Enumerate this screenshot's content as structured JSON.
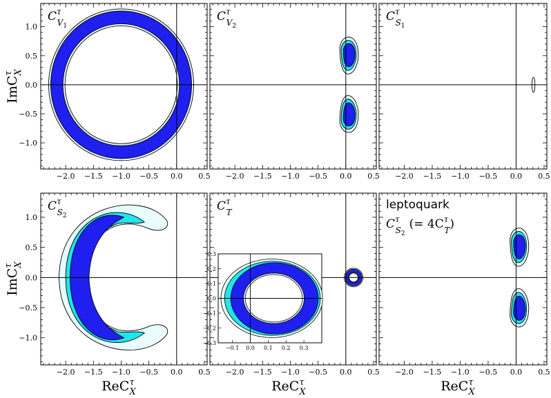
{
  "chart_data": {
    "type": "contour",
    "xlabel": "ReC",
    "xlabel_sup": "τ",
    "xlabel_sub": "X",
    "ylabel": "ImC",
    "ylabel_sup": "τ",
    "ylabel_sub": "X",
    "xlim": [
      -2.45,
      0.55
    ],
    "ylim": [
      -1.45,
      1.4
    ],
    "xticks": [
      "-2.0",
      "-1.5",
      "-1.0",
      "-0.5",
      "0.0",
      "0.5"
    ],
    "yticks": [
      "1.0",
      "0.5",
      "0.0",
      "-0.5",
      "-1.0"
    ],
    "xtick_values": [
      -2.0,
      -1.5,
      -1.0,
      -0.5,
      0.0,
      0.5
    ],
    "ytick_values": [
      1.0,
      0.5,
      0.0,
      -0.5,
      -1.0
    ],
    "colors": {
      "inner": "#1f20f0",
      "middle": "#22e4ec",
      "outer": "#e9fcfd",
      "line": "#000000"
    },
    "panels": [
      {
        "id": "CV1",
        "label_base": "C",
        "label_sup": "τ",
        "label_sub": "V",
        "label_subsub": "1",
        "shape": "ring",
        "center": [
          -1.0,
          0.0
        ],
        "r_inner": 1.05,
        "r_outer": 1.27
      },
      {
        "id": "CV2",
        "label_base": "C",
        "label_sup": "τ",
        "label_sub": "V",
        "label_subsub": "2",
        "shape": "two-blobs",
        "blobs": [
          [
            0.05,
            0.52
          ],
          [
            0.05,
            -0.52
          ]
        ]
      },
      {
        "id": "CS1",
        "label_base": "C",
        "label_sup": "τ",
        "label_sub": "S",
        "label_subsub": "1",
        "shape": "thin-ellipse",
        "center": [
          0.31,
          0.0
        ]
      },
      {
        "id": "CS2",
        "label_base": "C",
        "label_sup": "τ",
        "label_sub": "S",
        "label_subsub": "2",
        "shape": "crescent",
        "center": [
          -1.0,
          0.0
        ]
      },
      {
        "id": "CT",
        "label_base": "C",
        "label_sup": "τ",
        "label_sub": "T",
        "label_subsub": "",
        "shape": "small-ring",
        "center": [
          0.14,
          0.0
        ],
        "inset": {
          "xticks": [
            "-0.1",
            "0.0",
            "0.1",
            "0.2",
            "0.3"
          ],
          "yticks": [
            "0.3",
            "0.2",
            "0.1",
            "0.0",
            "-0.1",
            "-0.2",
            "-0.3"
          ]
        }
      },
      {
        "id": "LQ",
        "label_title": "leptoquark",
        "label_base": "C",
        "label_sup": "τ",
        "label_sub": "S",
        "label_subsub": "2",
        "label_rel": "(= 4C",
        "label_rel_sup": "τ",
        "label_rel_sub": "T",
        "label_rel_end": ")",
        "shape": "two-blobs",
        "blobs": [
          [
            0.05,
            0.52
          ],
          [
            0.05,
            -0.52
          ]
        ]
      }
    ]
  }
}
